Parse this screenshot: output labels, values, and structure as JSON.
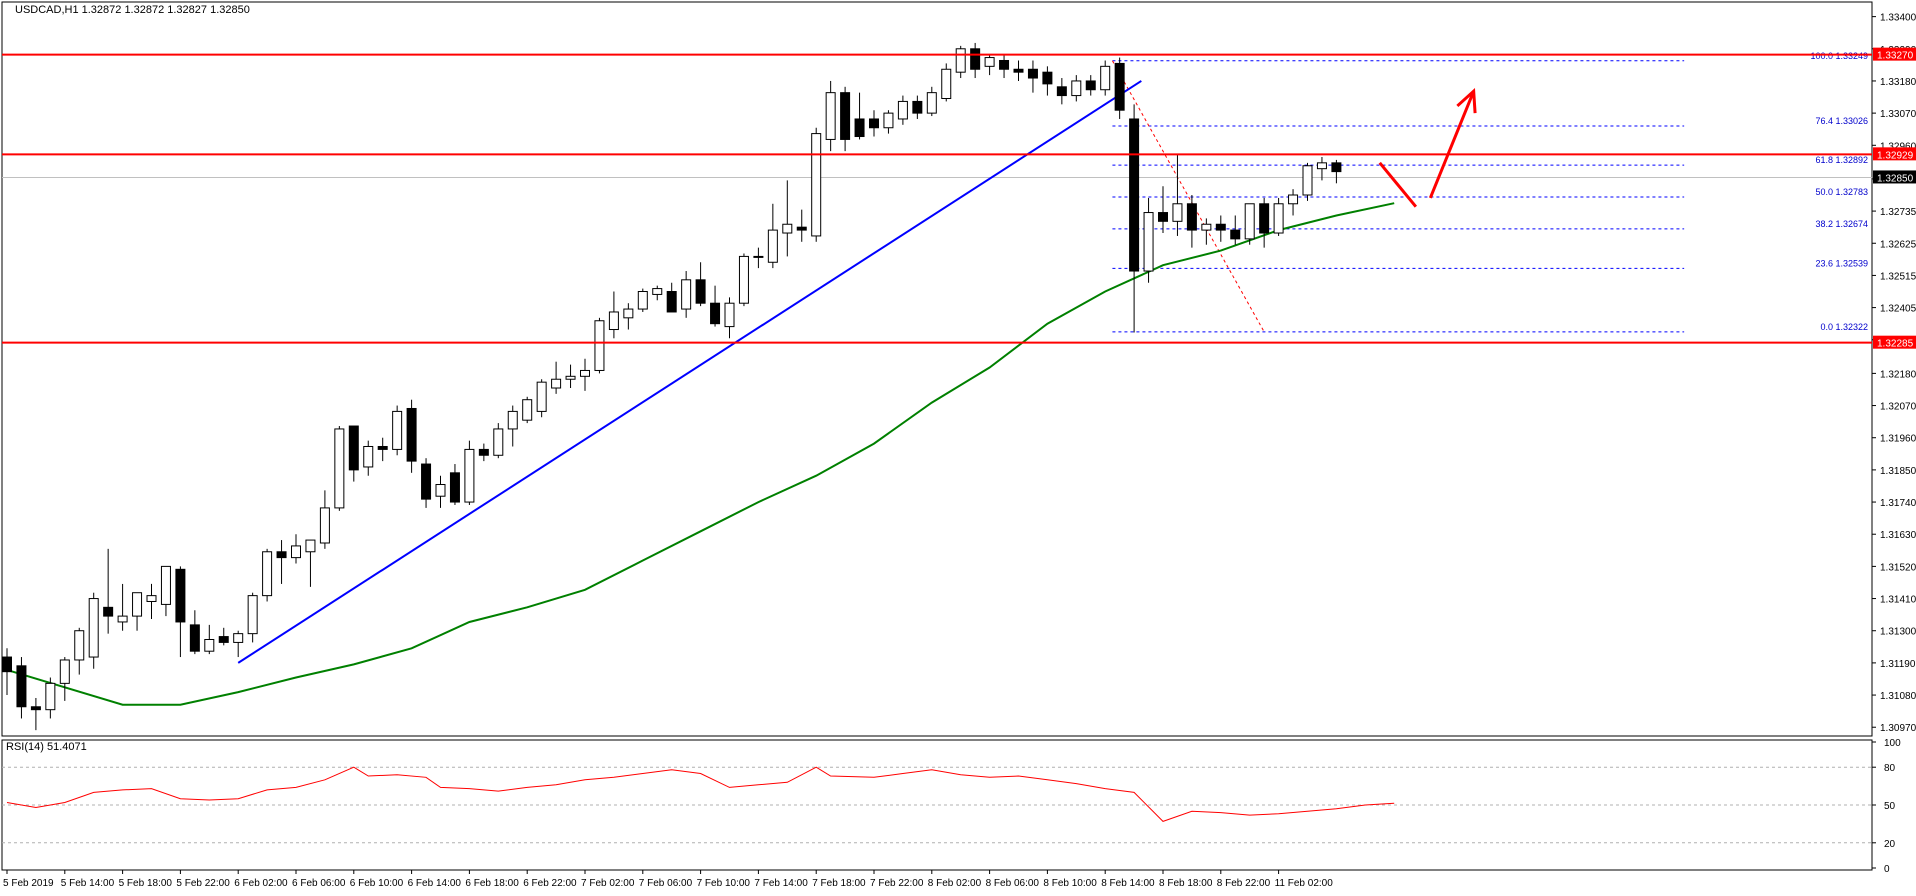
{
  "header": {
    "symbol_line": "USDCAD,H1  1.32872 1.32872 1.32827 1.32850",
    "rsi_label": "RSI(14) 51.4071"
  },
  "colors": {
    "background": "#ffffff",
    "bull_fill": "#ffffff",
    "bear_fill": "#000000",
    "candle_outline": "#000000",
    "level_line": "#ff0000",
    "trend_line": "#0000ff",
    "moving_average": "#008000",
    "rsi_line": "#ff0000",
    "fib_line": "#0000ff",
    "price_tag_bg": "#ff0000",
    "current_tag_bg": "#000000"
  },
  "chart_data": [
    {
      "type": "candlestick",
      "symbol": "USDCAD",
      "timeframe": "H1",
      "ylim": [
        1.3094,
        1.3345
      ],
      "yticks": [
        1.334,
        1.3329,
        1.3318,
        1.3307,
        1.3296,
        1.32845,
        1.32735,
        1.32625,
        1.32515,
        1.32405,
        1.32295,
        1.3218,
        1.3207,
        1.3196,
        1.3185,
        1.3174,
        1.3163,
        1.3152,
        1.3141,
        1.313,
        1.3119,
        1.3108,
        1.3097
      ],
      "xticks": [
        {
          "index": 0,
          "label": "5 Feb 2019"
        },
        {
          "index": 4,
          "label": "5 Feb 14:00"
        },
        {
          "index": 8,
          "label": "5 Feb 18:00"
        },
        {
          "index": 12,
          "label": "5 Feb 22:00"
        },
        {
          "index": 16,
          "label": "6 Feb 02:00"
        },
        {
          "index": 20,
          "label": "6 Feb 06:00"
        },
        {
          "index": 24,
          "label": "6 Feb 10:00"
        },
        {
          "index": 28,
          "label": "6 Feb 14:00"
        },
        {
          "index": 32,
          "label": "6 Feb 18:00"
        },
        {
          "index": 36,
          "label": "6 Feb 22:00"
        },
        {
          "index": 40,
          "label": "7 Feb 02:00"
        },
        {
          "index": 44,
          "label": "7 Feb 06:00"
        },
        {
          "index": 48,
          "label": "7 Feb 10:00"
        },
        {
          "index": 52,
          "label": "7 Feb 14:00"
        },
        {
          "index": 56,
          "label": "7 Feb 18:00"
        },
        {
          "index": 60,
          "label": "7 Feb 22:00"
        },
        {
          "index": 64,
          "label": "8 Feb 02:00"
        },
        {
          "index": 68,
          "label": "8 Feb 06:00"
        },
        {
          "index": 72,
          "label": "8 Feb 10:00"
        },
        {
          "index": 76,
          "label": "8 Feb 14:00"
        },
        {
          "index": 80,
          "label": "8 Feb 18:00"
        },
        {
          "index": 84,
          "label": "8 Feb 22:00"
        },
        {
          "index": 88,
          "label": "11 Feb 02:00"
        }
      ],
      "candles": [
        {
          "o": 1.3121,
          "h": 1.3124,
          "l": 1.3108,
          "c": 1.3116
        },
        {
          "o": 1.3118,
          "h": 1.3121,
          "l": 1.31,
          "c": 1.3104
        },
        {
          "o": 1.3104,
          "h": 1.3107,
          "l": 1.3096,
          "c": 1.3103
        },
        {
          "o": 1.3103,
          "h": 1.3114,
          "l": 1.31,
          "c": 1.3112
        },
        {
          "o": 1.3112,
          "h": 1.3121,
          "l": 1.3106,
          "c": 1.312
        },
        {
          "o": 1.312,
          "h": 1.3131,
          "l": 1.3115,
          "c": 1.313
        },
        {
          "o": 1.3121,
          "h": 1.3143,
          "l": 1.3117,
          "c": 1.3141
        },
        {
          "o": 1.3138,
          "h": 1.3158,
          "l": 1.3129,
          "c": 1.3135
        },
        {
          "o": 1.3133,
          "h": 1.3146,
          "l": 1.313,
          "c": 1.3135
        },
        {
          "o": 1.3135,
          "h": 1.3143,
          "l": 1.313,
          "c": 1.3143
        },
        {
          "o": 1.314,
          "h": 1.3146,
          "l": 1.3134,
          "c": 1.3142
        },
        {
          "o": 1.3139,
          "h": 1.3152,
          "l": 1.3135,
          "c": 1.3152
        },
        {
          "o": 1.3151,
          "h": 1.3152,
          "l": 1.3121,
          "c": 1.3133
        },
        {
          "o": 1.3132,
          "h": 1.3137,
          "l": 1.3122,
          "c": 1.3123
        },
        {
          "o": 1.3123,
          "h": 1.3132,
          "l": 1.3122,
          "c": 1.3127
        },
        {
          "o": 1.3128,
          "h": 1.3131,
          "l": 1.3125,
          "c": 1.3126
        },
        {
          "o": 1.3126,
          "h": 1.313,
          "l": 1.3121,
          "c": 1.3129
        },
        {
          "o": 1.3129,
          "h": 1.3143,
          "l": 1.3126,
          "c": 1.3142
        },
        {
          "o": 1.3142,
          "h": 1.3158,
          "l": 1.314,
          "c": 1.3157
        },
        {
          "o": 1.3157,
          "h": 1.3161,
          "l": 1.3146,
          "c": 1.3155
        },
        {
          "o": 1.3155,
          "h": 1.3163,
          "l": 1.3153,
          "c": 1.3159
        },
        {
          "o": 1.3157,
          "h": 1.3161,
          "l": 1.3145,
          "c": 1.3161
        },
        {
          "o": 1.316,
          "h": 1.3178,
          "l": 1.3158,
          "c": 1.3172
        },
        {
          "o": 1.3172,
          "h": 1.32,
          "l": 1.3171,
          "c": 1.3199
        },
        {
          "o": 1.32,
          "h": 1.32,
          "l": 1.3181,
          "c": 1.3185
        },
        {
          "o": 1.3186,
          "h": 1.3195,
          "l": 1.3183,
          "c": 1.3193
        },
        {
          "o": 1.3193,
          "h": 1.3196,
          "l": 1.3188,
          "c": 1.3192
        },
        {
          "o": 1.3192,
          "h": 1.3207,
          "l": 1.319,
          "c": 1.3205
        },
        {
          "o": 1.3206,
          "h": 1.3209,
          "l": 1.3184,
          "c": 1.3188
        },
        {
          "o": 1.3187,
          "h": 1.3189,
          "l": 1.3172,
          "c": 1.3175
        },
        {
          "o": 1.3176,
          "h": 1.3183,
          "l": 1.3172,
          "c": 1.318
        },
        {
          "o": 1.3184,
          "h": 1.3187,
          "l": 1.3173,
          "c": 1.3174
        },
        {
          "o": 1.3174,
          "h": 1.3195,
          "l": 1.3173,
          "c": 1.3192
        },
        {
          "o": 1.3192,
          "h": 1.3194,
          "l": 1.3188,
          "c": 1.319
        },
        {
          "o": 1.319,
          "h": 1.3201,
          "l": 1.3189,
          "c": 1.3199
        },
        {
          "o": 1.3199,
          "h": 1.3207,
          "l": 1.3193,
          "c": 1.3205
        },
        {
          "o": 1.3202,
          "h": 1.321,
          "l": 1.3201,
          "c": 1.3209
        },
        {
          "o": 1.3205,
          "h": 1.3216,
          "l": 1.3203,
          "c": 1.3215
        },
        {
          "o": 1.3213,
          "h": 1.3222,
          "l": 1.3211,
          "c": 1.3216
        },
        {
          "o": 1.3216,
          "h": 1.3221,
          "l": 1.3213,
          "c": 1.3217
        },
        {
          "o": 1.3217,
          "h": 1.3223,
          "l": 1.3212,
          "c": 1.3219
        },
        {
          "o": 1.3219,
          "h": 1.3237,
          "l": 1.3218,
          "c": 1.3236
        },
        {
          "o": 1.3233,
          "h": 1.3246,
          "l": 1.323,
          "c": 1.3239
        },
        {
          "o": 1.3237,
          "h": 1.3242,
          "l": 1.3233,
          "c": 1.324
        },
        {
          "o": 1.324,
          "h": 1.3247,
          "l": 1.3239,
          "c": 1.3246
        },
        {
          "o": 1.3245,
          "h": 1.3248,
          "l": 1.3243,
          "c": 1.3247
        },
        {
          "o": 1.3246,
          "h": 1.3249,
          "l": 1.3239,
          "c": 1.3239
        },
        {
          "o": 1.324,
          "h": 1.3253,
          "l": 1.3237,
          "c": 1.325
        },
        {
          "o": 1.325,
          "h": 1.3256,
          "l": 1.3241,
          "c": 1.3242
        },
        {
          "o": 1.3242,
          "h": 1.3248,
          "l": 1.3234,
          "c": 1.3235
        },
        {
          "o": 1.3234,
          "h": 1.3244,
          "l": 1.323,
          "c": 1.3242
        },
        {
          "o": 1.3242,
          "h": 1.3259,
          "l": 1.3241,
          "c": 1.3258
        },
        {
          "o": 1.3258,
          "h": 1.3261,
          "l": 1.3254,
          "c": 1.3258
        },
        {
          "o": 1.3256,
          "h": 1.3276,
          "l": 1.3254,
          "c": 1.3267
        },
        {
          "o": 1.3266,
          "h": 1.3284,
          "l": 1.3258,
          "c": 1.3269
        },
        {
          "o": 1.3268,
          "h": 1.3274,
          "l": 1.3263,
          "c": 1.3267
        },
        {
          "o": 1.3265,
          "h": 1.3302,
          "l": 1.3263,
          "c": 1.33
        },
        {
          "o": 1.3298,
          "h": 1.3318,
          "l": 1.3294,
          "c": 1.3314
        },
        {
          "o": 1.3314,
          "h": 1.3316,
          "l": 1.3294,
          "c": 1.3298
        },
        {
          "o": 1.3305,
          "h": 1.3314,
          "l": 1.3298,
          "c": 1.3299
        },
        {
          "o": 1.3305,
          "h": 1.3308,
          "l": 1.3299,
          "c": 1.3302
        },
        {
          "o": 1.3302,
          "h": 1.3308,
          "l": 1.33,
          "c": 1.3307
        },
        {
          "o": 1.3305,
          "h": 1.3313,
          "l": 1.3303,
          "c": 1.3311
        },
        {
          "o": 1.3311,
          "h": 1.3313,
          "l": 1.3305,
          "c": 1.3307
        },
        {
          "o": 1.3307,
          "h": 1.3316,
          "l": 1.3306,
          "c": 1.3314
        },
        {
          "o": 1.3312,
          "h": 1.3324,
          "l": 1.3311,
          "c": 1.3322
        },
        {
          "o": 1.3321,
          "h": 1.333,
          "l": 1.3319,
          "c": 1.3329
        },
        {
          "o": 1.3329,
          "h": 1.3331,
          "l": 1.3319,
          "c": 1.3322
        },
        {
          "o": 1.3323,
          "h": 1.3327,
          "l": 1.332,
          "c": 1.3326
        },
        {
          "o": 1.3325,
          "h": 1.3327,
          "l": 1.3319,
          "c": 1.3322
        },
        {
          "o": 1.3322,
          "h": 1.3325,
          "l": 1.3318,
          "c": 1.3321
        },
        {
          "o": 1.3322,
          "h": 1.3325,
          "l": 1.3314,
          "c": 1.3319
        },
        {
          "o": 1.3321,
          "h": 1.3323,
          "l": 1.3313,
          "c": 1.3317
        },
        {
          "o": 1.3316,
          "h": 1.3319,
          "l": 1.331,
          "c": 1.3313
        },
        {
          "o": 1.3313,
          "h": 1.332,
          "l": 1.3311,
          "c": 1.3318
        },
        {
          "o": 1.3318,
          "h": 1.332,
          "l": 1.3313,
          "c": 1.3315
        },
        {
          "o": 1.3315,
          "h": 1.3325,
          "l": 1.3313,
          "c": 1.3323
        },
        {
          "o": 1.3324,
          "h": 1.3326,
          "l": 1.3305,
          "c": 1.3308
        },
        {
          "o": 1.3305,
          "h": 1.331,
          "l": 1.3232,
          "c": 1.3253
        },
        {
          "o": 1.3253,
          "h": 1.3278,
          "l": 1.3249,
          "c": 1.3273
        },
        {
          "o": 1.3273,
          "h": 1.3282,
          "l": 1.3266,
          "c": 1.327
        },
        {
          "o": 1.327,
          "h": 1.3293,
          "l": 1.3265,
          "c": 1.3276
        },
        {
          "o": 1.3276,
          "h": 1.3279,
          "l": 1.3261,
          "c": 1.3267
        },
        {
          "o": 1.3267,
          "h": 1.3271,
          "l": 1.3262,
          "c": 1.3269
        },
        {
          "o": 1.3269,
          "h": 1.3272,
          "l": 1.3263,
          "c": 1.3267
        },
        {
          "o": 1.3267,
          "h": 1.3272,
          "l": 1.3262,
          "c": 1.3264
        },
        {
          "o": 1.3264,
          "h": 1.3276,
          "l": 1.3262,
          "c": 1.3276
        },
        {
          "o": 1.3276,
          "h": 1.3278,
          "l": 1.3261,
          "c": 1.3266
        },
        {
          "o": 1.3266,
          "h": 1.3278,
          "l": 1.3265,
          "c": 1.3276
        },
        {
          "o": 1.3276,
          "h": 1.3281,
          "l": 1.3272,
          "c": 1.3279
        },
        {
          "o": 1.3279,
          "h": 1.329,
          "l": 1.3277,
          "c": 1.3289
        },
        {
          "o": 1.3288,
          "h": 1.3292,
          "l": 1.3284,
          "c": 1.329
        },
        {
          "o": 1.329,
          "h": 1.3291,
          "l": 1.3283,
          "c": 1.3287
        }
      ],
      "moving_average": [
        {
          "i": 0,
          "v": 1.31166
        },
        {
          "i": 8,
          "v": 1.31047
        },
        {
          "i": 12,
          "v": 1.31047
        },
        {
          "i": 16,
          "v": 1.3109
        },
        {
          "i": 20,
          "v": 1.3114
        },
        {
          "i": 24,
          "v": 1.31185
        },
        {
          "i": 28,
          "v": 1.3124
        },
        {
          "i": 32,
          "v": 1.3133
        },
        {
          "i": 36,
          "v": 1.3138
        },
        {
          "i": 40,
          "v": 1.3144
        },
        {
          "i": 44,
          "v": 1.3154
        },
        {
          "i": 48,
          "v": 1.3164
        },
        {
          "i": 52,
          "v": 1.3174
        },
        {
          "i": 56,
          "v": 1.3183
        },
        {
          "i": 60,
          "v": 1.3194
        },
        {
          "i": 64,
          "v": 1.3208
        },
        {
          "i": 68,
          "v": 1.322
        },
        {
          "i": 72,
          "v": 1.3235
        },
        {
          "i": 76,
          "v": 1.3246
        },
        {
          "i": 80,
          "v": 1.3255
        },
        {
          "i": 84,
          "v": 1.326
        },
        {
          "i": 88,
          "v": 1.3267
        },
        {
          "i": 92,
          "v": 1.3272
        },
        {
          "i": 96,
          "v": 1.32762
        }
      ],
      "horizontal_levels": [
        {
          "price": 1.3327,
          "label": "1.33270"
        },
        {
          "price": 1.32929,
          "label": "1.32929"
        },
        {
          "price": 1.32285,
          "label": "1.32285"
        }
      ],
      "current_price": {
        "price": 1.3285,
        "label": "1.32850"
      },
      "trendline": {
        "from": {
          "i": 16,
          "p": 1.3119
        },
        "to": {
          "i": 78.5,
          "p": 1.3318
        }
      },
      "fibonacci": {
        "from_index": 76.5,
        "to_index": 87,
        "levels": [
          {
            "label": "100.0 1.33249",
            "price": 1.33249
          },
          {
            "label": "76.4 1.33026",
            "price": 1.33026
          },
          {
            "label": "61.8 1.32892",
            "price": 1.32892
          },
          {
            "label": "50.0 1.32783",
            "price": 1.32783
          },
          {
            "label": "38.2 1.32674",
            "price": 1.32674
          },
          {
            "label": "23.6 1.32539",
            "price": 1.32539
          },
          {
            "label": "0.0 1.32322",
            "price": 1.32322
          }
        ]
      },
      "annotations": {
        "arrow_down": {
          "from": {
            "i": 95,
            "p": 1.329
          },
          "to": {
            "i": 97.5,
            "p": 1.3275
          }
        },
        "arrow_up": {
          "from": {
            "i": 98.5,
            "p": 1.3278
          },
          "to": {
            "i": 101.5,
            "p": 1.33145
          }
        }
      }
    },
    {
      "type": "line",
      "title": "RSI(14) 51.4071",
      "ylim": [
        0,
        100
      ],
      "yticks": [
        100,
        80,
        50,
        20,
        0
      ],
      "levels": [
        80,
        50,
        20
      ],
      "values": [
        {
          "i": 0,
          "v": 52
        },
        {
          "i": 2,
          "v": 48
        },
        {
          "i": 4,
          "v": 52
        },
        {
          "i": 6,
          "v": 60
        },
        {
          "i": 8,
          "v": 62
        },
        {
          "i": 10,
          "v": 63
        },
        {
          "i": 12,
          "v": 55
        },
        {
          "i": 14,
          "v": 54
        },
        {
          "i": 16,
          "v": 55
        },
        {
          "i": 18,
          "v": 62
        },
        {
          "i": 20,
          "v": 64
        },
        {
          "i": 22,
          "v": 70
        },
        {
          "i": 24,
          "v": 80
        },
        {
          "i": 25,
          "v": 73
        },
        {
          "i": 27,
          "v": 74
        },
        {
          "i": 29,
          "v": 72
        },
        {
          "i": 30,
          "v": 64
        },
        {
          "i": 32,
          "v": 63
        },
        {
          "i": 34,
          "v": 61
        },
        {
          "i": 36,
          "v": 64
        },
        {
          "i": 38,
          "v": 66
        },
        {
          "i": 40,
          "v": 70
        },
        {
          "i": 42,
          "v": 72
        },
        {
          "i": 44,
          "v": 75
        },
        {
          "i": 46,
          "v": 78
        },
        {
          "i": 48,
          "v": 75
        },
        {
          "i": 50,
          "v": 64
        },
        {
          "i": 52,
          "v": 66
        },
        {
          "i": 54,
          "v": 68
        },
        {
          "i": 56,
          "v": 80
        },
        {
          "i": 57,
          "v": 73
        },
        {
          "i": 60,
          "v": 72
        },
        {
          "i": 62,
          "v": 75
        },
        {
          "i": 64,
          "v": 78
        },
        {
          "i": 66,
          "v": 74
        },
        {
          "i": 68,
          "v": 72
        },
        {
          "i": 70,
          "v": 73
        },
        {
          "i": 72,
          "v": 70
        },
        {
          "i": 74,
          "v": 67
        },
        {
          "i": 76,
          "v": 63
        },
        {
          "i": 78,
          "v": 60
        },
        {
          "i": 80,
          "v": 37
        },
        {
          "i": 82,
          "v": 45
        },
        {
          "i": 84,
          "v": 44
        },
        {
          "i": 86,
          "v": 42
        },
        {
          "i": 88,
          "v": 43
        },
        {
          "i": 90,
          "v": 45
        },
        {
          "i": 92,
          "v": 47
        },
        {
          "i": 94,
          "v": 50
        },
        {
          "i": 96,
          "v": 51.4
        }
      ]
    }
  ]
}
